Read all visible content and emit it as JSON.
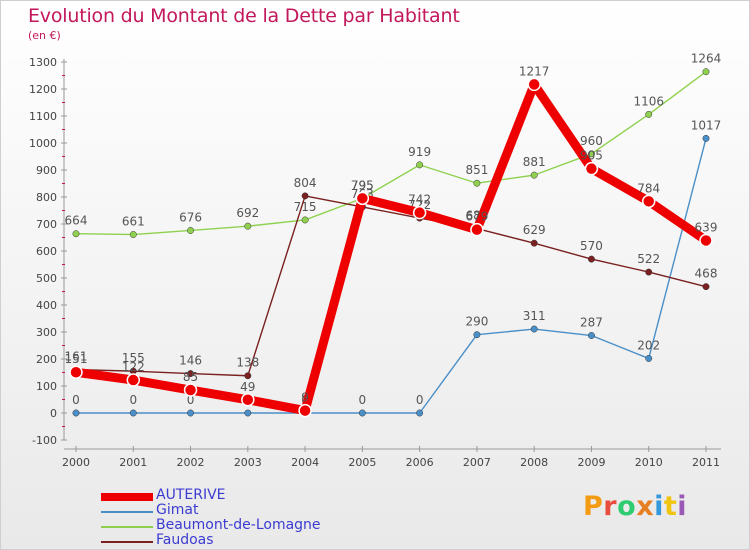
{
  "title": "Evolution du Montant de la Dette par Habitant",
  "unit": "(en €)",
  "logo": {
    "text": "Proxiti",
    "colors": [
      "#f39c12",
      "#e74c3c",
      "#2ecc71",
      "#e67e22",
      "#3498db",
      "#f1c40f",
      "#9b59b6"
    ]
  },
  "chart_data": {
    "type": "line",
    "x": [
      "2000",
      "2001",
      "2002",
      "2003",
      "2004",
      "2005",
      "2006",
      "2007",
      "2008",
      "2009",
      "2010",
      "2011"
    ],
    "ylim": [
      -100,
      1300
    ],
    "yticks": [
      -100,
      0,
      100,
      200,
      300,
      400,
      500,
      600,
      700,
      800,
      900,
      1000,
      1100,
      1200,
      1300
    ],
    "grid": false,
    "legend_position": "bottom-left",
    "series": [
      {
        "name": "Gimat",
        "color": "#4a8fc8",
        "values": [
          0,
          0,
          0,
          0,
          0,
          0,
          0,
          290,
          311,
          287,
          202,
          1017
        ]
      },
      {
        "name": "Beaumont-de-Lomagne",
        "color": "#8fd14f",
        "values": [
          664,
          661,
          676,
          692,
          715,
          795,
          919,
          851,
          881,
          960,
          1106,
          1264
        ]
      },
      {
        "name": "Faudoas",
        "color": "#7a2020",
        "values": [
          161,
          155,
          146,
          138,
          804,
          763,
          722,
          683,
          629,
          570,
          522,
          468
        ]
      },
      {
        "name": "AUTERIVE",
        "color": "#ee0000",
        "values": [
          151,
          122,
          85,
          49,
          9,
          795,
          742,
          679,
          1217,
          905,
          784,
          639
        ]
      }
    ],
    "legend_order": [
      "AUTERIVE",
      "Gimat",
      "Beaumont-de-Lomagne",
      "Faudoas"
    ]
  }
}
